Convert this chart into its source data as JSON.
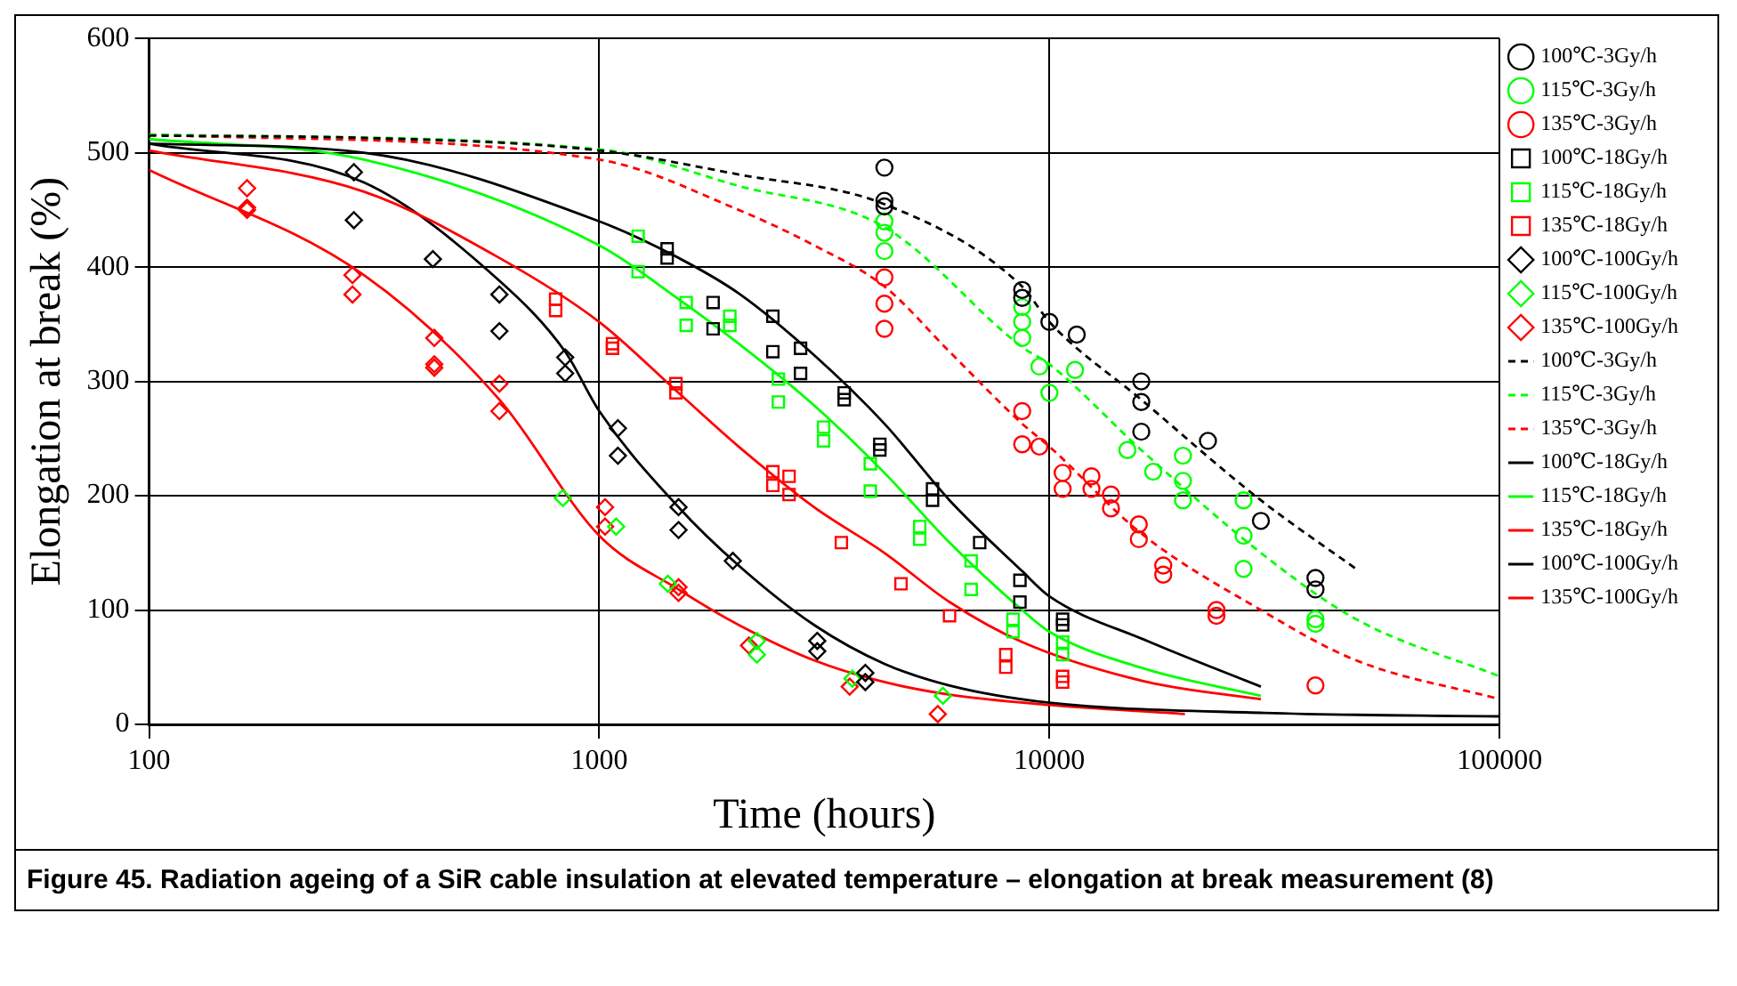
{
  "chart_data": {
    "type": "scatter",
    "xlabel": "Time (hours)",
    "ylabel": "Elongation at break (%)",
    "log": "x",
    "xlim": [
      100,
      100000
    ],
    "xticks": [
      100,
      1000,
      10000,
      100000
    ],
    "ylim": [
      0,
      600
    ],
    "yticks": [
      0,
      100,
      200,
      300,
      400,
      500,
      600
    ],
    "grid": true,
    "legend": "right",
    "annotations": [
      "Figure 45. Radiation ageing of a SiR cable insulation at elevated temperature – elongation at break measurement (8)"
    ],
    "series": [
      {
        "name": "100℃-3Gy/h",
        "type": "scatter",
        "marker": "circle",
        "color": "#000000",
        "x": [
          4300,
          4300,
          4300,
          8700,
          8700,
          10000,
          11500,
          16000,
          16000,
          16000,
          22500,
          29500,
          39000,
          39000
        ],
        "values": [
          487,
          458,
          453,
          380,
          373,
          352,
          341,
          300,
          282,
          256,
          248,
          178,
          128,
          118
        ]
      },
      {
        "name": "115℃-3Gy/h",
        "type": "scatter",
        "marker": "circle",
        "color": "#00ff00",
        "x": [
          4300,
          4300,
          4300,
          8700,
          8700,
          8700,
          9500,
          10000,
          11400,
          14900,
          17000,
          19800,
          19800,
          19800,
          27000,
          27000,
          27000,
          39000,
          39000
        ],
        "values": [
          440,
          430,
          414,
          365,
          352,
          338,
          313,
          290,
          310,
          240,
          221,
          235,
          213,
          196,
          196,
          165,
          136,
          92,
          88
        ]
      },
      {
        "name": "135℃-3Gy/h",
        "type": "scatter",
        "marker": "circle",
        "color": "#ff0000",
        "x": [
          4300,
          4300,
          4300,
          8700,
          8700,
          9500,
          10700,
          10700,
          12400,
          12400,
          13700,
          13700,
          15800,
          15800,
          17900,
          17900,
          23500,
          23500,
          39000
        ],
        "values": [
          391,
          368,
          346,
          274,
          245,
          243,
          220,
          206,
          217,
          206,
          201,
          189,
          175,
          162,
          139,
          131,
          100,
          95,
          34
        ]
      },
      {
        "name": "100℃-18Gy/h",
        "type": "scatter",
        "marker": "square",
        "color": "#000000",
        "x": [
          1415,
          1415,
          1790,
          1790,
          2430,
          2430,
          2800,
          2800,
          3500,
          3500,
          4200,
          4200,
          5500,
          5500,
          7000,
          8600,
          8600,
          10700,
          10700
        ],
        "values": [
          416,
          408,
          369,
          346,
          357,
          326,
          329,
          307,
          290,
          284,
          245,
          240,
          206,
          196,
          159,
          126,
          107,
          92,
          87
        ]
      },
      {
        "name": "115℃-18Gy/h",
        "type": "scatter",
        "marker": "square",
        "color": "#00ff00",
        "x": [
          1220,
          1220,
          1560,
          1560,
          1950,
          1950,
          2500,
          2500,
          3150,
          3150,
          4000,
          4000,
          5150,
          5150,
          6700,
          6700,
          8300,
          8300,
          10700,
          10700
        ],
        "values": [
          427,
          396,
          369,
          349,
          357,
          349,
          302,
          282,
          260,
          248,
          228,
          204,
          173,
          162,
          143,
          118,
          92,
          81,
          72,
          61
        ]
      },
      {
        "name": "135℃-18Gy/h",
        "type": "scatter",
        "marker": "square",
        "color": "#ff0000",
        "x": [
          800,
          800,
          1070,
          1070,
          1480,
          1480,
          2430,
          2430,
          2640,
          2640,
          3450,
          4680,
          6000,
          8000,
          8000,
          10700,
          10700
        ],
        "values": [
          372,
          362,
          333,
          329,
          298,
          290,
          221,
          209,
          217,
          201,
          159,
          123,
          95,
          61,
          50,
          42,
          37
        ]
      },
      {
        "name": "100℃-100Gy/h",
        "type": "scatter",
        "marker": "diamond",
        "color": "#000000",
        "x": [
          285,
          285,
          427,
          600,
          600,
          840,
          840,
          1100,
          1100,
          1500,
          1500,
          1980,
          3050,
          3050,
          3900,
          3900
        ],
        "values": [
          483,
          441,
          407,
          376,
          344,
          321,
          307,
          259,
          235,
          190,
          170,
          143,
          73,
          64,
          45,
          37
        ]
      },
      {
        "name": "115℃-100Gy/h",
        "type": "scatter",
        "marker": "diamond",
        "color": "#00ff00",
        "x": [
          830,
          1090,
          1420,
          2240,
          2240,
          3650,
          5800
        ],
        "values": [
          198,
          173,
          123,
          73,
          61,
          40,
          25
        ]
      },
      {
        "name": "135℃-100Gy/h",
        "type": "scatter",
        "marker": "diamond",
        "color": "#ff0000",
        "x": [
          165,
          165,
          165,
          283,
          283,
          430,
          430,
          430,
          600,
          600,
          1030,
          1030,
          1500,
          1500,
          2150,
          3600,
          5650
        ],
        "values": [
          469,
          450,
          452,
          393,
          376,
          338,
          315,
          312,
          298,
          274,
          190,
          173,
          120,
          115,
          69,
          33,
          9
        ]
      },
      {
        "name": "100℃-3Gy/h",
        "type": "line",
        "line_style": "dashed",
        "color": "#000000",
        "x": [
          100,
          300,
          1000,
          2040,
          4300,
          8700,
          10000,
          16000,
          29500,
          48000
        ],
        "values": [
          515,
          513,
          502,
          481,
          455,
          383,
          352,
          284,
          196,
          136
        ]
      },
      {
        "name": "115℃-3Gy/h",
        "type": "line",
        "line_style": "dashed",
        "color": "#00ff00",
        "x": [
          100,
          1000,
          2040,
          4300,
          8700,
          10000,
          16000,
          29500,
          48000,
          100000
        ],
        "values": [
          516,
          503,
          471,
          435,
          330,
          315,
          240,
          150,
          92,
          42
        ]
      },
      {
        "name": "135℃-3Gy/h",
        "type": "line",
        "line_style": "dashed",
        "color": "#ff0000",
        "x": [
          100,
          1000,
          2040,
          3000,
          4300,
          6000,
          8700,
          10000,
          16000,
          29500,
          48000,
          100000
        ],
        "values": [
          516,
          494,
          450,
          419,
          383,
          326,
          263,
          243,
          167,
          100,
          56,
          22
        ]
      },
      {
        "name": "100℃-18Gy/h",
        "type": "line",
        "line_style": "solid",
        "color": "#000000",
        "x": [
          100,
          300,
          1000,
          1500,
          2040,
          3000,
          4300,
          6000,
          8700,
          10000,
          16500,
          29500
        ],
        "values": [
          508,
          500,
          440,
          408,
          377,
          323,
          263,
          196,
          134,
          112,
          73,
          33
        ]
      },
      {
        "name": "115℃-18Gy/h",
        "type": "line",
        "line_style": "solid",
        "color": "#00ff00",
        "x": [
          100,
          300,
          1000,
          1500,
          2040,
          3000,
          4300,
          6000,
          8700,
          10000,
          16500,
          29500
        ],
        "values": [
          512,
          494,
          419,
          372,
          333,
          279,
          220,
          159,
          100,
          81,
          48,
          25
        ]
      },
      {
        "name": "135℃-18Gy/h",
        "type": "line",
        "line_style": "solid",
        "color": "#ff0000",
        "x": [
          100,
          300,
          600,
          1000,
          1500,
          2040,
          3000,
          4300,
          6000,
          8700,
          16500,
          29500
        ],
        "values": [
          502,
          466,
          408,
          352,
          290,
          243,
          190,
          150,
          107,
          72,
          37,
          22
        ]
      },
      {
        "name": "100℃-100Gy/h",
        "type": "line",
        "line_style": "solid",
        "color": "#000000",
        "x": [
          100,
          300,
          600,
          840,
          1000,
          1500,
          2040,
          3000,
          4300,
          6000,
          10000,
          30000,
          100000
        ],
        "values": [
          508,
          474,
          388,
          326,
          274,
          190,
          139,
          87,
          53,
          34,
          19,
          10,
          7
        ]
      },
      {
        "name": "135℃-100Gy/h",
        "type": "line",
        "line_style": "solid",
        "color": "#ff0000",
        "x": [
          100,
          300,
          600,
          1000,
          1500,
          2040,
          3000,
          4300,
          6000,
          10000,
          20000
        ],
        "values": [
          485,
          393,
          284,
          165,
          118,
          87,
          56,
          37,
          26,
          17,
          9
        ]
      }
    ]
  }
}
